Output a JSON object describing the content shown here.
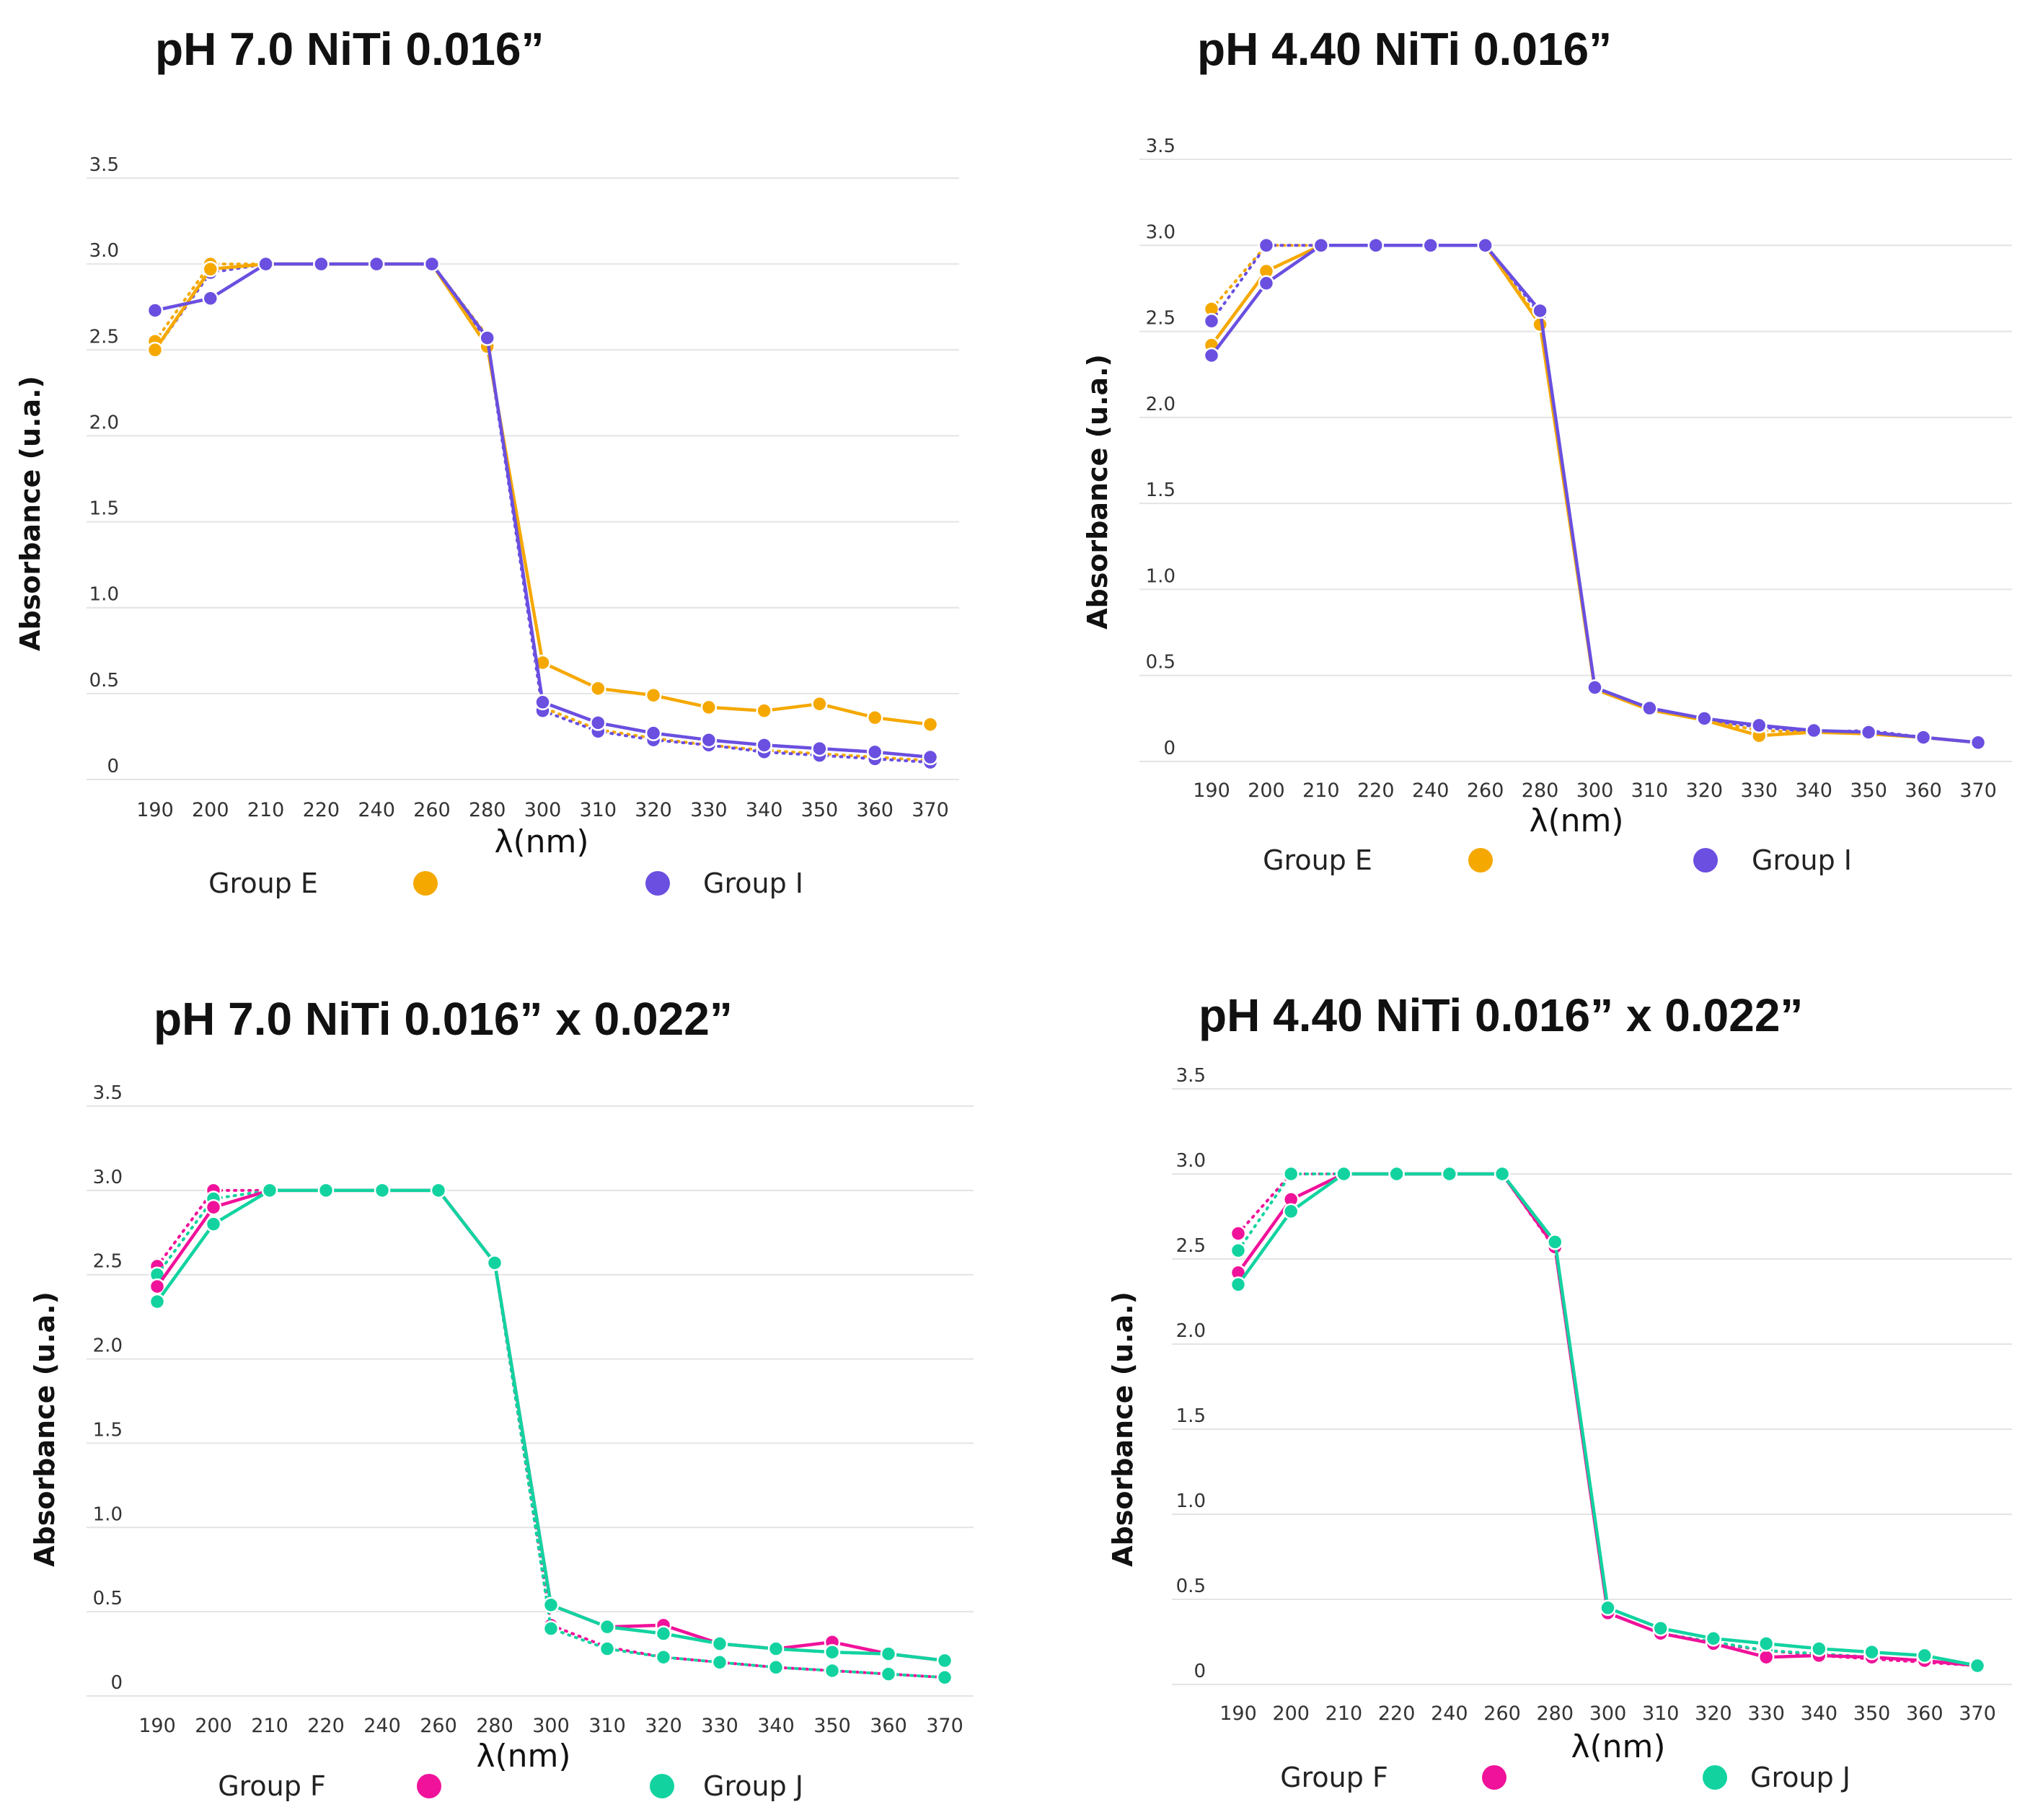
{
  "chart_data": [
    {
      "type": "line",
      "title": "pH 7.0 NiTi 0.016”",
      "xlabel": "λ(nm)",
      "ylabel": "Absorbance (u.a.)",
      "ylim": [
        0,
        3.5
      ],
      "yticks": [
        "0",
        "0.5",
        "1.0",
        "1.5",
        "2.0",
        "2.5",
        "3.0",
        "3.5"
      ],
      "categories": [
        "190",
        "200",
        "210",
        "220",
        "240",
        "260",
        "280",
        "300",
        "310",
        "320",
        "330",
        "340",
        "350",
        "360",
        "370"
      ],
      "grid": true,
      "legend_position": "bottom",
      "legend": [
        {
          "name": "Group E",
          "color": "#F5A800"
        },
        {
          "name": "Group I",
          "color": "#6A4FE0"
        }
      ],
      "series": [
        {
          "name": "Group E",
          "color": "#F5A800",
          "dash": "dotted",
          "values": [
            2.55,
            3.0,
            3.0,
            3.0,
            3.0,
            3.0,
            2.58,
            0.42,
            0.29,
            0.24,
            0.2,
            0.17,
            0.15,
            0.13,
            0.11
          ]
        },
        {
          "name": "Group E",
          "color": "#F5A800",
          "dash": "solid",
          "values": [
            2.5,
            2.97,
            3.0,
            3.0,
            3.0,
            3.0,
            2.52,
            0.68,
            0.53,
            0.49,
            0.42,
            0.4,
            0.44,
            0.36,
            0.32
          ]
        },
        {
          "name": "Group I",
          "color": "#6A4FE0",
          "dash": "dotted",
          "values": [
            2.5,
            2.95,
            3.0,
            3.0,
            3.0,
            3.0,
            2.55,
            0.4,
            0.28,
            0.23,
            0.2,
            0.16,
            0.14,
            0.12,
            0.1
          ]
        },
        {
          "name": "Group I",
          "color": "#6A4FE0",
          "dash": "solid",
          "values": [
            2.73,
            2.8,
            3.0,
            3.0,
            3.0,
            3.0,
            2.57,
            0.45,
            0.33,
            0.27,
            0.23,
            0.2,
            0.18,
            0.16,
            0.13
          ]
        }
      ]
    },
    {
      "type": "line",
      "title": "pH 4.40 NiTi 0.016”",
      "xlabel": "λ(nm)",
      "ylabel": "Absorbance (u.a.)",
      "ylim": [
        0,
        3.5
      ],
      "yticks": [
        "0",
        "0.5",
        "1.0",
        "1.5",
        "2.0",
        "2.5",
        "3.0",
        "3.5"
      ],
      "categories": [
        "190",
        "200",
        "210",
        "220",
        "240",
        "260",
        "280",
        "300",
        "310",
        "320",
        "330",
        "340",
        "350",
        "360",
        "370"
      ],
      "grid": true,
      "legend_position": "bottom",
      "legend": [
        {
          "name": "Group E",
          "color": "#F5A800"
        },
        {
          "name": "Group I",
          "color": "#6A4FE0"
        }
      ],
      "series": [
        {
          "name": "Group E",
          "color": "#F5A800",
          "dash": "dotted",
          "values": [
            2.63,
            3.0,
            3.0,
            3.0,
            3.0,
            3.0,
            2.56,
            0.42,
            0.3,
            0.24,
            0.18,
            0.17,
            0.16,
            0.14,
            0.11
          ]
        },
        {
          "name": "Group E",
          "color": "#F5A800",
          "dash": "solid",
          "values": [
            2.42,
            2.85,
            3.0,
            3.0,
            3.0,
            3.0,
            2.54,
            0.42,
            0.3,
            0.24,
            0.15,
            0.17,
            0.16,
            0.14,
            0.11
          ]
        },
        {
          "name": "Group I",
          "color": "#6A4FE0",
          "dash": "dotted",
          "values": [
            2.56,
            3.0,
            3.0,
            3.0,
            3.0,
            3.0,
            2.6,
            0.42,
            0.3,
            0.24,
            0.2,
            0.17,
            0.18,
            0.14,
            0.11
          ]
        },
        {
          "name": "Group I",
          "color": "#6A4FE0",
          "dash": "solid",
          "values": [
            2.36,
            2.78,
            3.0,
            3.0,
            3.0,
            3.0,
            2.62,
            0.43,
            0.31,
            0.25,
            0.21,
            0.18,
            0.17,
            0.14,
            0.11
          ]
        }
      ]
    },
    {
      "type": "line",
      "title": "pH 7.0 NiTi 0.016” x 0.022”",
      "xlabel": "λ(nm)",
      "ylabel": "Absorbance (u.a.)",
      "ylim": [
        0,
        3.5
      ],
      "yticks": [
        "0",
        "0.5",
        "1.0",
        "1.5",
        "2.0",
        "2.5",
        "3.0",
        "3.5"
      ],
      "categories": [
        "190",
        "200",
        "210",
        "220",
        "240",
        "260",
        "280",
        "300",
        "310",
        "320",
        "330",
        "340",
        "350",
        "360",
        "370"
      ],
      "grid": true,
      "legend_position": "bottom",
      "legend": [
        {
          "name": "Group F",
          "color": "#F0129A"
        },
        {
          "name": "Group J",
          "color": "#12D3A0"
        }
      ],
      "series": [
        {
          "name": "Group F",
          "color": "#F0129A",
          "dash": "dotted",
          "values": [
            2.55,
            3.0,
            3.0,
            3.0,
            3.0,
            3.0,
            2.57,
            0.42,
            0.29,
            0.23,
            0.2,
            0.17,
            0.15,
            0.13,
            0.11
          ]
        },
        {
          "name": "Group F",
          "color": "#F0129A",
          "dash": "solid",
          "values": [
            2.43,
            2.9,
            3.0,
            3.0,
            3.0,
            3.0,
            2.57,
            0.54,
            0.41,
            0.42,
            0.31,
            0.28,
            0.32,
            0.25,
            0.21
          ]
        },
        {
          "name": "Group J",
          "color": "#12D3A0",
          "dash": "dotted",
          "values": [
            2.5,
            2.95,
            3.0,
            3.0,
            3.0,
            3.0,
            2.57,
            0.4,
            0.28,
            0.23,
            0.2,
            0.17,
            0.15,
            0.13,
            0.11
          ]
        },
        {
          "name": "Group J",
          "color": "#12D3A0",
          "dash": "solid",
          "values": [
            2.34,
            2.8,
            3.0,
            3.0,
            3.0,
            3.0,
            2.57,
            0.54,
            0.41,
            0.37,
            0.31,
            0.28,
            0.26,
            0.25,
            0.21
          ]
        }
      ]
    },
    {
      "type": "line",
      "title": "pH 4.40 NiTi 0.016” x 0.022”",
      "xlabel": "λ(nm)",
      "ylabel": "Absorbance (u.a.)",
      "ylim": [
        0,
        3.5
      ],
      "yticks": [
        "0",
        "0.5",
        "1.0",
        "1.5",
        "2.0",
        "2.5",
        "3.0",
        "3.5"
      ],
      "categories": [
        "190",
        "200",
        "210",
        "220",
        "240",
        "260",
        "280",
        "300",
        "310",
        "320",
        "330",
        "340",
        "350",
        "360",
        "370"
      ],
      "grid": true,
      "legend_position": "bottom",
      "legend": [
        {
          "name": "Group F",
          "color": "#F0129A"
        },
        {
          "name": "Group J",
          "color": "#12D3A0"
        }
      ],
      "series": [
        {
          "name": "Group F",
          "color": "#F0129A",
          "dash": "dotted",
          "values": [
            2.65,
            3.0,
            3.0,
            3.0,
            3.0,
            3.0,
            2.56,
            0.42,
            0.3,
            0.24,
            0.2,
            0.17,
            0.15,
            0.13,
            0.11
          ]
        },
        {
          "name": "Group F",
          "color": "#F0129A",
          "dash": "solid",
          "values": [
            2.42,
            2.85,
            3.0,
            3.0,
            3.0,
            3.0,
            2.57,
            0.42,
            0.3,
            0.24,
            0.16,
            0.17,
            0.16,
            0.14,
            0.11
          ]
        },
        {
          "name": "Group J",
          "color": "#12D3A0",
          "dash": "dotted",
          "values": [
            2.55,
            3.0,
            3.0,
            3.0,
            3.0,
            3.0,
            2.6,
            0.42,
            0.3,
            0.25,
            0.2,
            0.18,
            0.16,
            0.14,
            0.11
          ]
        },
        {
          "name": "Group J",
          "color": "#12D3A0",
          "dash": "solid",
          "values": [
            2.35,
            2.78,
            3.0,
            3.0,
            3.0,
            3.0,
            2.6,
            0.45,
            0.33,
            0.27,
            0.24,
            0.21,
            0.19,
            0.17,
            0.11
          ]
        }
      ]
    }
  ]
}
